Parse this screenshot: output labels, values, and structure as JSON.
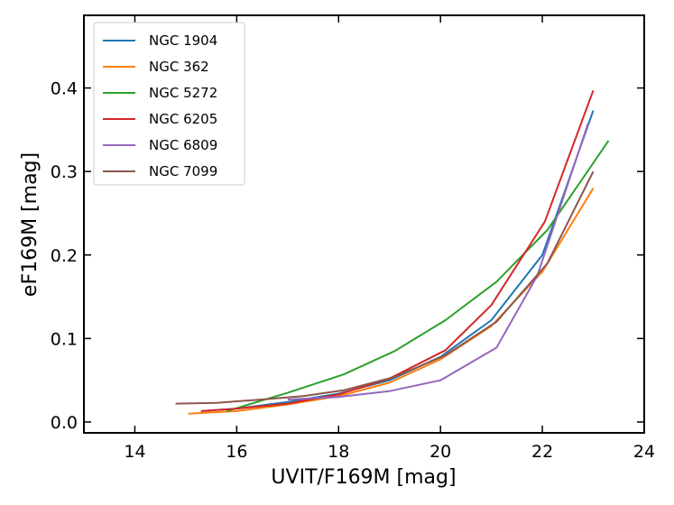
{
  "chart_data": {
    "type": "line",
    "title": "",
    "xlabel": "UVIT/F169M [mag]",
    "ylabel": "eF169M [mag]",
    "xlim": [
      13,
      24
    ],
    "ylim": [
      -0.013,
      0.487
    ],
    "xticks": [
      14,
      16,
      18,
      20,
      22,
      24
    ],
    "xtick_labels": [
      "14",
      "16",
      "18",
      "20",
      "22",
      "24"
    ],
    "yticks": [
      0.0,
      0.1,
      0.2,
      0.3,
      0.4
    ],
    "ytick_labels": [
      "0.0",
      "0.1",
      "0.2",
      "0.3",
      "0.4"
    ],
    "grid": false,
    "legend_position": "top-left",
    "series": [
      {
        "name": "NGC 1904",
        "color": "#1f77b4",
        "x": [
          15.3,
          16.0,
          17.0,
          18.0,
          19.0,
          20.0,
          21.0,
          22.0,
          23.0
        ],
        "y": [
          0.013,
          0.016,
          0.024,
          0.034,
          0.05,
          0.078,
          0.122,
          0.2,
          0.373
        ]
      },
      {
        "name": "NGC 362",
        "color": "#ff7f0e",
        "x": [
          15.05,
          16.0,
          17.0,
          18.0,
          19.0,
          20.0,
          21.0,
          22.0,
          23.0
        ],
        "y": [
          0.01,
          0.013,
          0.021,
          0.031,
          0.047,
          0.075,
          0.115,
          0.18,
          0.28
        ]
      },
      {
        "name": "NGC 5272",
        "color": "#2ca02c",
        "x": [
          15.8,
          17.0,
          18.1,
          19.1,
          20.1,
          21.1,
          22.1,
          23.3
        ],
        "y": [
          0.013,
          0.035,
          0.057,
          0.085,
          0.122,
          0.168,
          0.23,
          0.337
        ]
      },
      {
        "name": "NGC 6205",
        "color": "#d62728",
        "x": [
          15.3,
          16.0,
          17.0,
          18.0,
          19.0,
          20.1,
          21.0,
          22.05,
          23.0
        ],
        "y": [
          0.013,
          0.016,
          0.022,
          0.033,
          0.052,
          0.086,
          0.14,
          0.24,
          0.397
        ]
      },
      {
        "name": "NGC 6809",
        "color": "#9467bd",
        "x": [
          17.0,
          18.0,
          19.0,
          20.0,
          21.1,
          21.9,
          22.9
        ],
        "y": [
          0.027,
          0.03,
          0.037,
          0.05,
          0.089,
          0.175,
          0.358
        ]
      },
      {
        "name": "NGC 7099",
        "color": "#8c564b",
        "x": [
          14.8,
          15.6,
          16.5,
          17.3,
          18.1,
          19.1,
          20.1,
          21.1,
          22.1,
          23.0
        ],
        "y": [
          0.022,
          0.023,
          0.027,
          0.031,
          0.038,
          0.054,
          0.08,
          0.12,
          0.19,
          0.3
        ]
      }
    ]
  }
}
